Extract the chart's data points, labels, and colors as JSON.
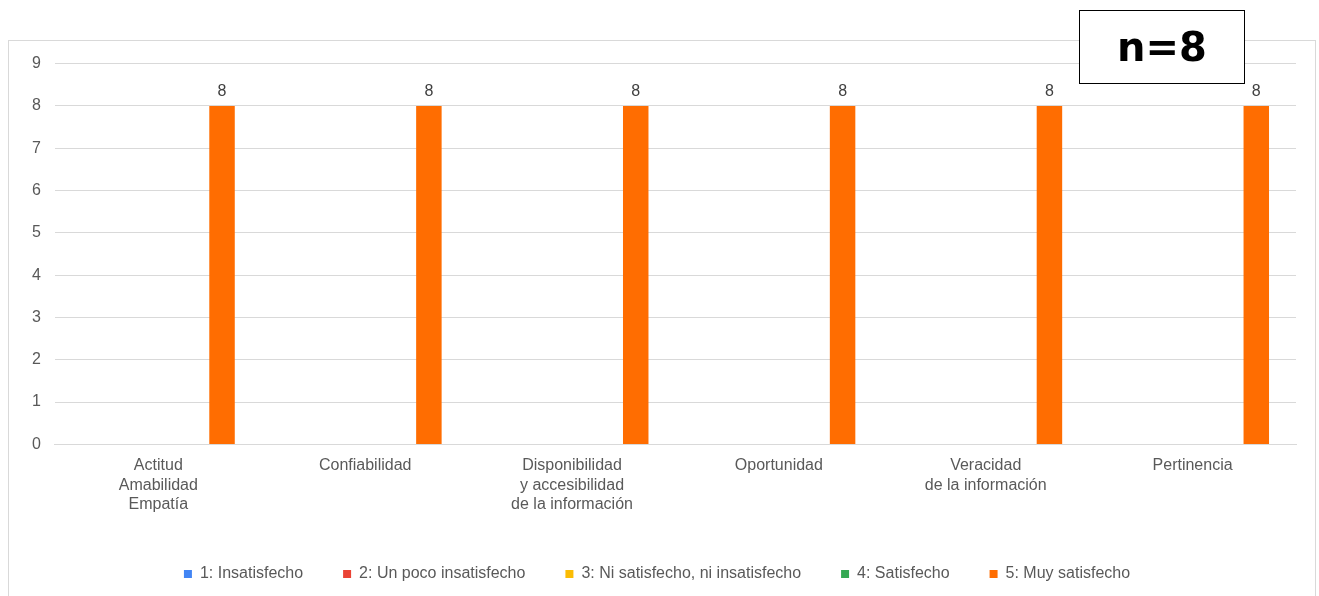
{
  "chart_data": {
    "type": "bar",
    "categories": [
      "Actitud\nAmabilidad\nEmpatía",
      "Confiabilidad",
      "Disponibilidad\ny accesibilidad\nde la información",
      "Oportunidad",
      "Veracidad\nde la información",
      "Pertinencia"
    ],
    "series": [
      {
        "name": "1: Insatisfecho",
        "color": "#4285f4",
        "values": [
          0,
          0,
          0,
          0,
          0,
          0
        ]
      },
      {
        "name": "2: Un poco insatisfecho",
        "color": "#ea4335",
        "values": [
          0,
          0,
          0,
          0,
          0,
          0
        ]
      },
      {
        "name": "3: Ni satisfecho, ni insatisfecho",
        "color": "#fbbc04",
        "values": [
          0,
          0,
          0,
          0,
          0,
          0
        ]
      },
      {
        "name": "4: Satisfecho",
        "color": "#34a853",
        "values": [
          0,
          0,
          0,
          0,
          0,
          0
        ]
      },
      {
        "name": "5: Muy satisfecho",
        "color": "#ff6d01",
        "values": [
          8,
          8,
          8,
          8,
          8,
          8
        ],
        "value_labels": [
          "8",
          "8",
          "8",
          "8",
          "8",
          "8"
        ]
      }
    ],
    "ylim": [
      0,
      9
    ],
    "yticks": [
      0,
      1,
      2,
      3,
      4,
      5,
      6,
      7,
      8,
      9
    ],
    "grid": "y",
    "legend": "bottom",
    "annotations": [
      "n=8"
    ]
  }
}
